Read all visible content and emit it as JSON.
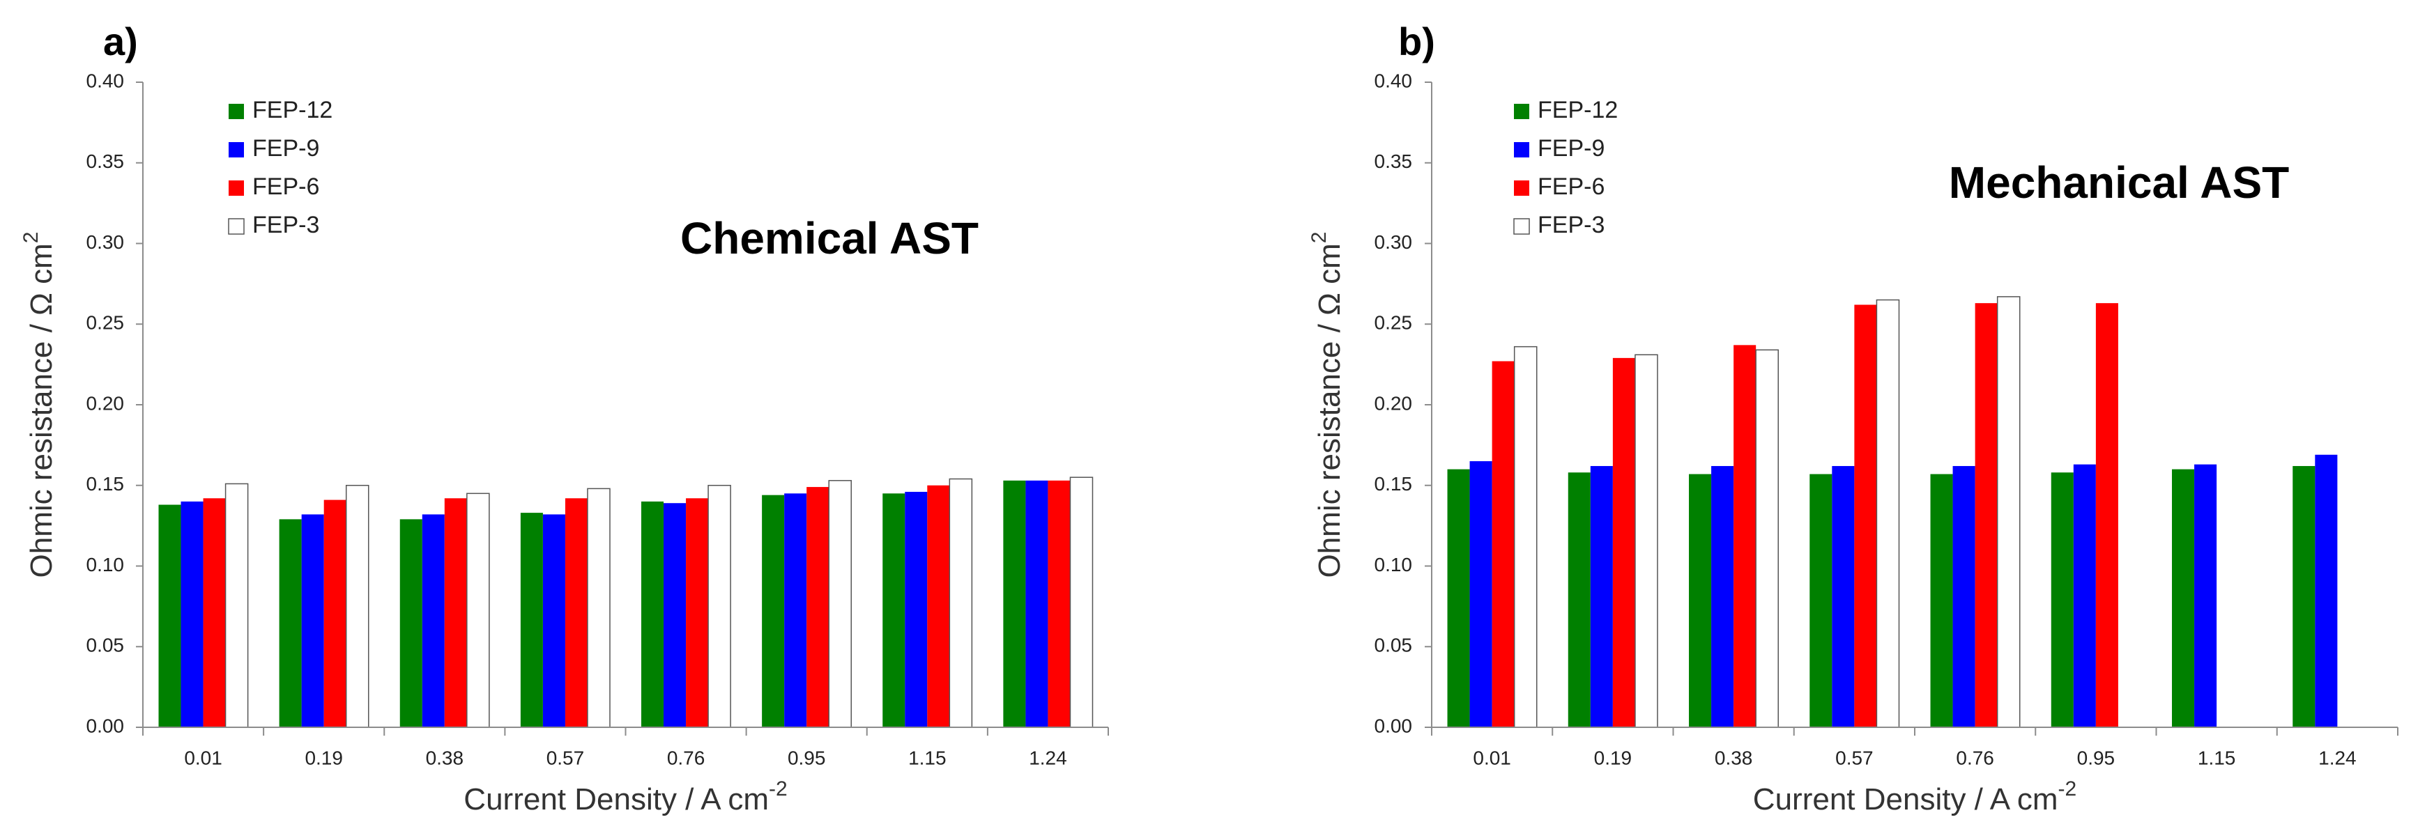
{
  "chart_data": [
    {
      "panel_label": "a)",
      "type": "bar",
      "title": "Chemical AST",
      "xlabel": {
        "text": "Current Density / A cm",
        "sup": "-2"
      },
      "ylabel": {
        "text": "Ohmic resistance / Ω cm",
        "sup": "2"
      },
      "categories": [
        "0.01",
        "0.19",
        "0.38",
        "0.57",
        "0.76",
        "0.95",
        "1.15",
        "1.24"
      ],
      "ylim": [
        0,
        0.4
      ],
      "yticks": [
        "0.00",
        "0.05",
        "0.10",
        "0.15",
        "0.20",
        "0.25",
        "0.30",
        "0.35",
        "0.40"
      ],
      "grid": false,
      "legend_position": "top-left",
      "series": [
        {
          "name": "FEP-12",
          "color": "#008000",
          "values": [
            0.138,
            0.129,
            0.129,
            0.133,
            0.14,
            0.144,
            0.145,
            0.153
          ]
        },
        {
          "name": "FEP-9",
          "color": "#0000ff",
          "values": [
            0.14,
            0.132,
            0.132,
            0.132,
            0.139,
            0.145,
            0.146,
            0.153
          ]
        },
        {
          "name": "FEP-6",
          "color": "#ff0000",
          "values": [
            0.142,
            0.141,
            0.142,
            0.142,
            0.142,
            0.149,
            0.15,
            0.153
          ]
        },
        {
          "name": "FEP-3",
          "color": "#ffffff",
          "values": [
            0.151,
            0.15,
            0.145,
            0.148,
            0.15,
            0.153,
            0.154,
            0.155
          ]
        }
      ]
    },
    {
      "panel_label": "b)",
      "type": "bar",
      "title": "Mechanical AST",
      "xlabel": {
        "text": "Current Density / A cm",
        "sup": "-2"
      },
      "ylabel": {
        "text": "Ohmic resistance / Ω cm",
        "sup": "2"
      },
      "categories": [
        "0.01",
        "0.19",
        "0.38",
        "0.57",
        "0.76",
        "0.95",
        "1.15",
        "1.24"
      ],
      "ylim": [
        0,
        0.4
      ],
      "yticks": [
        "0.00",
        "0.05",
        "0.10",
        "0.15",
        "0.20",
        "0.25",
        "0.30",
        "0.35",
        "0.40"
      ],
      "grid": false,
      "legend_position": "top-left",
      "series": [
        {
          "name": "FEP-12",
          "color": "#008000",
          "values": [
            0.16,
            0.158,
            0.157,
            0.157,
            0.157,
            0.158,
            0.16,
            0.162
          ]
        },
        {
          "name": "FEP-9",
          "color": "#0000ff",
          "values": [
            0.165,
            0.162,
            0.162,
            0.162,
            0.162,
            0.163,
            0.163,
            0.169
          ]
        },
        {
          "name": "FEP-6",
          "color": "#ff0000",
          "values": [
            0.227,
            0.229,
            0.237,
            0.262,
            0.263,
            0.263,
            null,
            null
          ]
        },
        {
          "name": "FEP-3",
          "color": "#ffffff",
          "values": [
            0.236,
            0.231,
            0.234,
            0.265,
            0.267,
            null,
            null,
            null
          ]
        }
      ]
    }
  ]
}
